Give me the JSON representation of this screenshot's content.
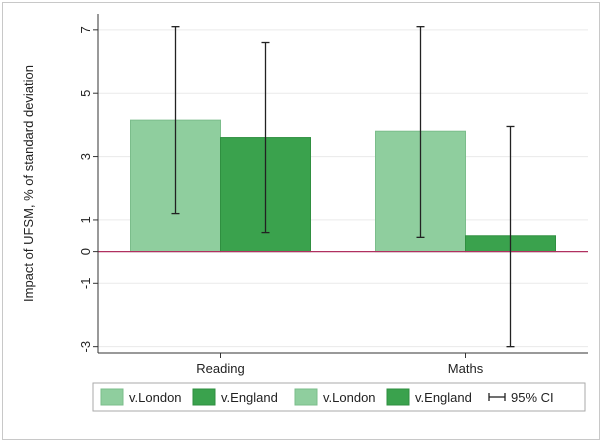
{
  "chart_data": {
    "type": "bar",
    "title": "",
    "xlabel": "",
    "ylabel": "Impact of UFSM, % of standard deviation",
    "ylim": [
      -3.2,
      7.5
    ],
    "yticks": [
      7,
      5,
      3,
      1,
      0,
      -1,
      -3
    ],
    "ytick_labels": [
      "7",
      "5",
      "3",
      "1",
      "0",
      "-1",
      "-3"
    ],
    "categories": [
      "Reading",
      "Maths"
    ],
    "grid": "horizontal",
    "legend_position": "bottom",
    "series": [
      {
        "name": "v.London",
        "color": "#8fce9e",
        "values": [
          4.15,
          3.8
        ],
        "ci_low": [
          1.2,
          0.45
        ],
        "ci_high": [
          7.1,
          7.1
        ]
      },
      {
        "name": "v.England",
        "color": "#3aa24d",
        "values": [
          3.6,
          0.5
        ],
        "ci_low": [
          0.6,
          -3.0
        ],
        "ci_high": [
          6.6,
          3.95
        ]
      }
    ],
    "legend": [
      {
        "label": "v.London",
        "color": "#8fce9e",
        "kind": "box"
      },
      {
        "label": "v.England",
        "color": "#3aa24d",
        "kind": "box"
      },
      {
        "label": "v.London",
        "color": "#8fce9e",
        "kind": "box"
      },
      {
        "label": "v.England",
        "color": "#3aa24d",
        "kind": "box"
      },
      {
        "label": "95% CI",
        "color": "#222222",
        "kind": "ci"
      }
    ],
    "zero_line_color": "#b03060"
  }
}
